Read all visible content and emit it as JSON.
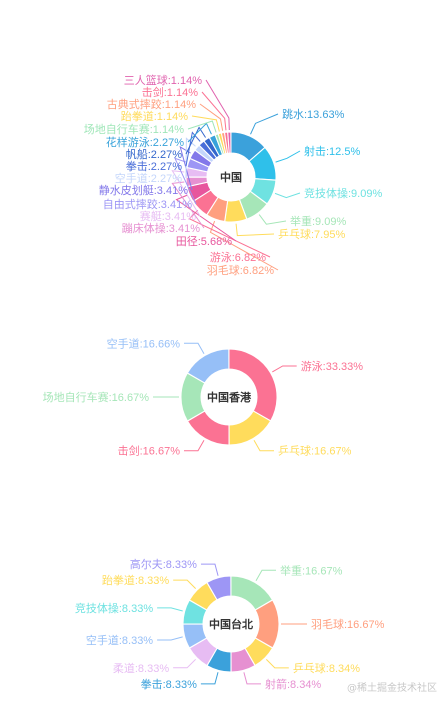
{
  "watermark": "@稀土掘金技术社区",
  "chart_data": [
    {
      "type": "pie",
      "donut": true,
      "center_label": "中国",
      "slices": [
        {
          "name": "跳水",
          "value": 13.63,
          "color": "#3ba1db"
        },
        {
          "name": "射击",
          "value": 12.5,
          "color": "#2fc0ea"
        },
        {
          "name": "竞技体操",
          "value": 9.09,
          "color": "#6fe2e1"
        },
        {
          "name": "举重",
          "value": 9.09,
          "color": "#a6e6b8"
        },
        {
          "name": "乒乓球",
          "value": 7.95,
          "color": "#ffdc5c"
        },
        {
          "name": "羽毛球",
          "value": 6.82,
          "color": "#ff9f7f"
        },
        {
          "name": "游泳",
          "value": 6.82,
          "color": "#fb7293"
        },
        {
          "name": "田径",
          "value": 5.68,
          "color": "#e7569d"
        },
        {
          "name": "蹦床体操",
          "value": 3.41,
          "color": "#e690d1"
        },
        {
          "name": "赛艇",
          "value": 3.41,
          "color": "#e7bcf3"
        },
        {
          "name": "自由式摔跤",
          "value": 3.41,
          "color": "#9d96f5"
        },
        {
          "name": "静水皮划艇",
          "value": 3.41,
          "color": "#8378ea"
        },
        {
          "name": "空手道",
          "value": 2.27,
          "color": "#c4d6fb"
        },
        {
          "name": "拳击",
          "value": 2.27,
          "color": "#4a6ed9"
        },
        {
          "name": "帆船",
          "value": 2.27,
          "color": "#3366cc"
        },
        {
          "name": "花样游泳",
          "value": 2.27,
          "color": "#37a2da"
        },
        {
          "name": "场地自行车赛",
          "value": 1.14,
          "color": "#9fe6b8"
        },
        {
          "name": "跆拳道",
          "value": 1.14,
          "color": "#ffdb5c"
        },
        {
          "name": "古典式摔跤",
          "value": 1.14,
          "color": "#ff9f7f"
        },
        {
          "name": "击剑",
          "value": 1.14,
          "color": "#fb7293"
        },
        {
          "name": "三人篮球",
          "value": 1.14,
          "color": "#e062ae"
        }
      ],
      "labels": [
        "跳水:13.63%",
        "射击:12.5%",
        "竞技体操:9.09%",
        "举重:9.09%",
        "乒乓球:7.95%",
        "羽毛球:6.82%",
        "游泳:6.82%",
        "田径:5.68%",
        "蹦床体操:3.41%",
        "赛艇:3.41%",
        "自由式摔跤:3.41%",
        "静水皮划艇:3.41%",
        "空手道:2.27%",
        "拳击:2.27%",
        "帆船:2.27%",
        "花样游泳:2.27%",
        "场地自行车赛:1.14%",
        "跆拳道:1.14%",
        "古典式摔跤:1.14%",
        "击剑:1.14%",
        "三人篮球:1.14%"
      ]
    },
    {
      "type": "pie",
      "donut": true,
      "center_label": "中国香港",
      "slices": [
        {
          "name": "游泳",
          "value": 33.33,
          "color": "#fb7293"
        },
        {
          "name": "乒乓球",
          "value": 16.67,
          "color": "#ffdc5c"
        },
        {
          "name": "击剑",
          "value": 16.67,
          "color": "#fb7293"
        },
        {
          "name": "场地自行车赛",
          "value": 16.67,
          "color": "#a6e6b8"
        },
        {
          "name": "空手道",
          "value": 16.66,
          "color": "#96bff7"
        }
      ],
      "labels": [
        "游泳:33.33%",
        "乒乓球:16.67%",
        "击剑:16.67%",
        "场地自行车赛:16.67%",
        "空手道:16.66%"
      ]
    },
    {
      "type": "pie",
      "donut": true,
      "center_label": "中国台北",
      "slices": [
        {
          "name": "举重",
          "value": 16.67,
          "color": "#a6e6b8"
        },
        {
          "name": "羽毛球",
          "value": 16.67,
          "color": "#ff9f7f"
        },
        {
          "name": "乒乓球",
          "value": 8.34,
          "color": "#ffdc5c"
        },
        {
          "name": "射箭",
          "value": 8.34,
          "color": "#e690d1"
        },
        {
          "name": "拳击",
          "value": 8.33,
          "color": "#3ba1db"
        },
        {
          "name": "柔道",
          "value": 8.33,
          "color": "#e7bcf3"
        },
        {
          "name": "空手道",
          "value": 8.33,
          "color": "#96bff7"
        },
        {
          "name": "竞技体操",
          "value": 8.33,
          "color": "#6fe2e1"
        },
        {
          "name": "跆拳道",
          "value": 8.33,
          "color": "#ffdc5c"
        },
        {
          "name": "高尔夫",
          "value": 8.33,
          "color": "#9d96f5"
        }
      ],
      "labels": [
        "举重:16.67%",
        "羽毛球:16.67%",
        "乒乓球:8.34%",
        "射箭:8.34%",
        "拳击:8.33%",
        "柔道:8.33%",
        "空手道:8.33%",
        "竞技体操:8.33%",
        "跆拳道:8.33%",
        "高尔夫:8.33%"
      ]
    }
  ]
}
